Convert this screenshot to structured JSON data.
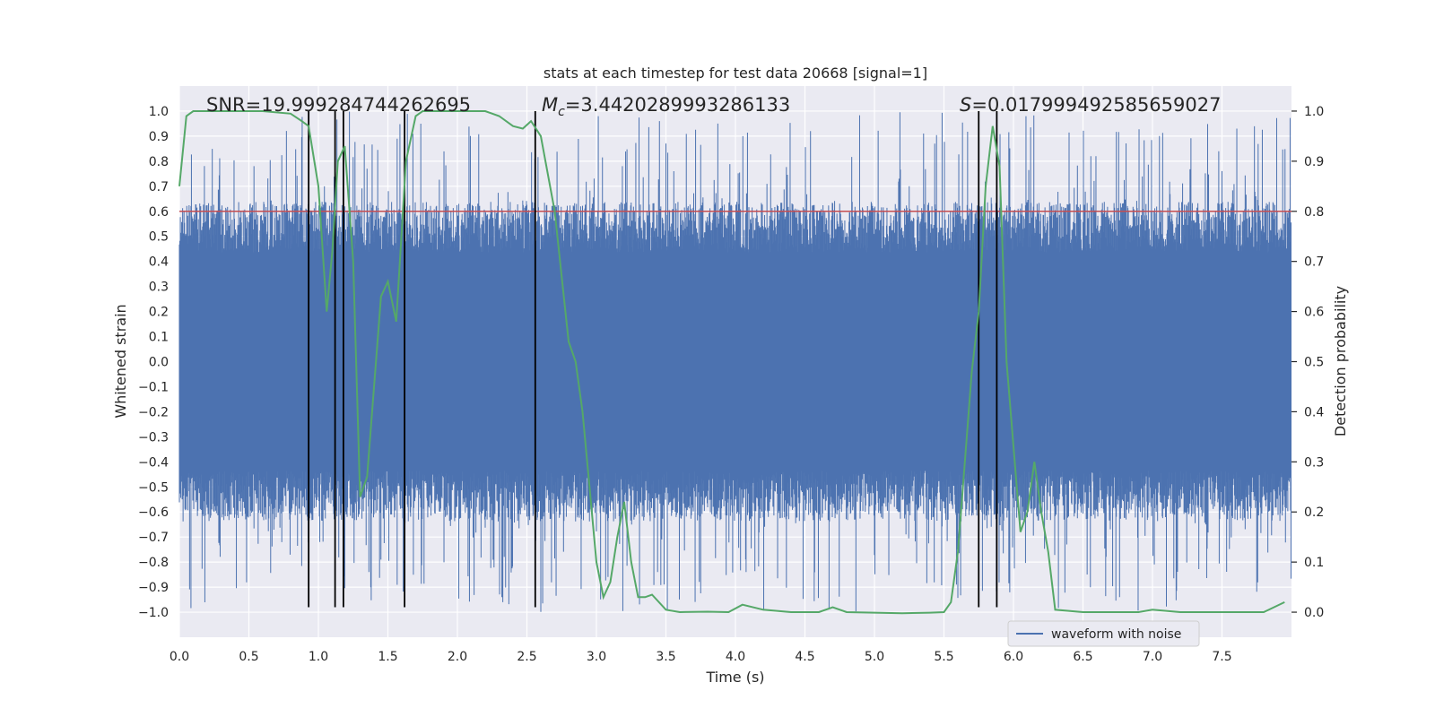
{
  "chart_data": {
    "type": "line",
    "title": "stats at each timestep for test data 20668 [signal=1]",
    "xlabel": "Time (s)",
    "ylabel": "Whitened strain",
    "y2label": "Detection probability",
    "xlim": [
      0.0,
      8.0
    ],
    "ylim": [
      -1.1,
      1.1
    ],
    "y2lim": [
      -0.05,
      1.05
    ],
    "xticks": [
      0.0,
      0.5,
      1.0,
      1.5,
      2.0,
      2.5,
      3.0,
      3.5,
      4.0,
      4.5,
      5.0,
      5.5,
      6.0,
      6.5,
      7.0,
      7.5
    ],
    "xtick_labels": [
      "0.0",
      "0.5",
      "1.0",
      "1.5",
      "2.0",
      "2.5",
      "3.0",
      "3.5",
      "4.0",
      "4.5",
      "5.0",
      "5.5",
      "6.0",
      "6.5",
      "7.0",
      "7.5"
    ],
    "yticks": [
      1.0,
      0.9,
      0.8,
      0.7,
      0.6,
      0.5,
      0.4,
      0.3,
      0.2,
      0.1,
      0.0,
      -0.1,
      -0.2,
      -0.3,
      -0.4,
      -0.5,
      -0.6,
      -0.7,
      -0.8,
      -0.9,
      -1.0
    ],
    "ytick_labels": [
      "1.0",
      "0.9",
      "0.8",
      "0.7",
      "0.6",
      "0.5",
      "0.4",
      "0.3",
      "0.2",
      "0.1",
      "0.0",
      "−0.1",
      "−0.2",
      "−0.3",
      "−0.4",
      "−0.5",
      "−0.6",
      "−0.7",
      "−0.8",
      "−0.9",
      "−1.0"
    ],
    "y2ticks": [
      1.0,
      0.9,
      0.8,
      0.7,
      0.6,
      0.5,
      0.4,
      0.3,
      0.2,
      0.1,
      0.0
    ],
    "y2tick_labels": [
      "1.0",
      "0.9",
      "0.8",
      "0.7",
      "0.6",
      "0.5",
      "0.4",
      "0.3",
      "0.2",
      "0.1",
      "0.0"
    ],
    "threshold": 0.8,
    "vlines": [
      0.93,
      1.12,
      1.18,
      1.62,
      2.56,
      5.75,
      5.88
    ],
    "vline_range": [
      -0.98,
      1.0
    ],
    "annotations": {
      "snr": "SNR=19.999284744262695",
      "mc_symbol": "M",
      "mc_subscript": "c",
      "mc_value": "=3.4420289993286133",
      "s_symbol": "S",
      "s_value": "=0.017999492585659027"
    },
    "legend": "waveform with noise",
    "series": [
      {
        "name": "waveform with noise",
        "axis": "left",
        "description": "dense whitened strain noise, envelope roughly -0.6..0.6 with spikes to about ±1.0",
        "envelope": {
          "x_start": 0.0,
          "x_end": 8.0,
          "core": 0.4,
          "bulk": 0.58,
          "peak": 1.0
        }
      },
      {
        "name": "detection probability",
        "axis": "right",
        "x": [
          0.0,
          0.05,
          0.1,
          0.2,
          0.4,
          0.6,
          0.8,
          0.88,
          0.93,
          1.0,
          1.06,
          1.1,
          1.14,
          1.19,
          1.25,
          1.3,
          1.35,
          1.45,
          1.5,
          1.56,
          1.63,
          1.7,
          1.75,
          1.85,
          2.0,
          2.2,
          2.3,
          2.4,
          2.47,
          2.53,
          2.6,
          2.7,
          2.8,
          2.85,
          2.9,
          2.95,
          3.0,
          3.05,
          3.1,
          3.15,
          3.2,
          3.25,
          3.3,
          3.35,
          3.4,
          3.5,
          3.6,
          3.8,
          3.95,
          4.05,
          4.2,
          4.4,
          4.6,
          4.7,
          4.8,
          5.0,
          5.2,
          5.4,
          5.5,
          5.55,
          5.6,
          5.65,
          5.7,
          5.75,
          5.8,
          5.85,
          5.9,
          5.95,
          6.05,
          6.1,
          6.15,
          6.2,
          6.25,
          6.3,
          6.5,
          6.7,
          6.9,
          7.0,
          7.2,
          7.4,
          7.6,
          7.8,
          7.95
        ],
        "y": [
          0.85,
          0.99,
          1.0,
          1.0,
          1.0,
          1.0,
          0.995,
          0.98,
          0.97,
          0.85,
          0.6,
          0.72,
          0.9,
          0.93,
          0.7,
          0.23,
          0.27,
          0.63,
          0.66,
          0.58,
          0.9,
          0.99,
          1.0,
          1.0,
          1.0,
          1.0,
          0.99,
          0.97,
          0.965,
          0.98,
          0.95,
          0.8,
          0.54,
          0.5,
          0.4,
          0.25,
          0.1,
          0.03,
          0.06,
          0.15,
          0.22,
          0.1,
          0.03,
          0.03,
          0.035,
          0.005,
          0.0,
          0.001,
          0.0,
          0.015,
          0.005,
          0.0,
          0.0,
          0.01,
          0.0,
          -0.001,
          -0.002,
          -0.001,
          0.0,
          0.02,
          0.12,
          0.3,
          0.48,
          0.6,
          0.85,
          0.97,
          0.89,
          0.5,
          0.16,
          0.2,
          0.3,
          0.2,
          0.12,
          0.005,
          0.0,
          0.0,
          0.0,
          0.005,
          0.0,
          0.0,
          0.0,
          0.0,
          0.02
        ]
      }
    ],
    "colors": {
      "plot_bg": "#eaeaf2",
      "grid": "#ffffff",
      "waveform": "#4c72b0",
      "probability": "#55a868",
      "threshold": "#c44e52",
      "vline": "#000000",
      "text": "#262626"
    }
  }
}
